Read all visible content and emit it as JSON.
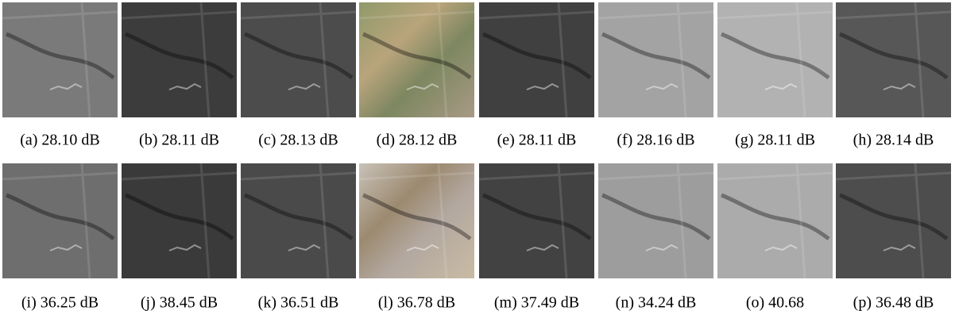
{
  "figure": {
    "rows": [
      [
        "(a) 28.10 dB",
        "(b) 28.11 dB",
        "(c) 28.13 dB",
        "(d) 28.12 dB",
        "(e) 28.11 dB",
        "(f) 28.16 dB",
        "(g) 28.11 dB",
        "(h) 28.14 dB"
      ],
      [
        "(i) 36.25 dB",
        "(j) 38.45 dB",
        "(k) 36.51 dB",
        "(l) 36.78 dB",
        "(m) 37.49 dB",
        "(n) 34.24 dB",
        "(o) 40.68",
        "(p) 36.48 dB"
      ]
    ]
  }
}
